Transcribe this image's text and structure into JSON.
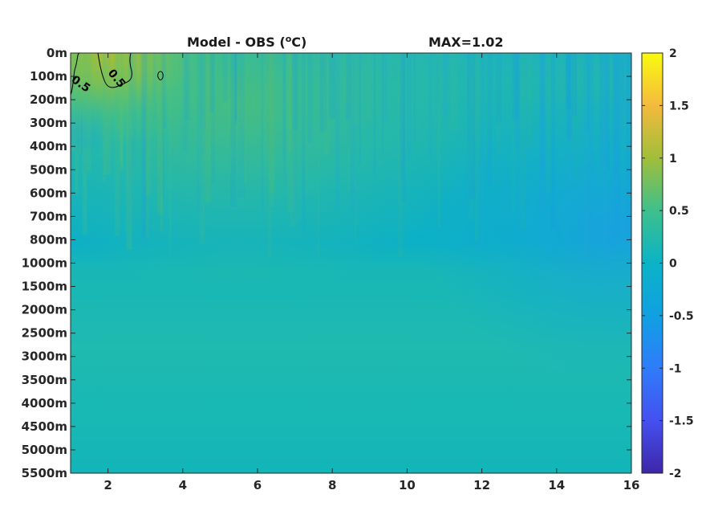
{
  "chart_data": {
    "type": "heatmap",
    "title": "Model - OBS (",
    "title_unit_superscript": "o",
    "title_unit_suffix": "C)",
    "max_label": "MAX=1.02",
    "x_ticks": [
      "2",
      "4",
      "6",
      "8",
      "10",
      "12",
      "14",
      "16"
    ],
    "x_tick_values": [
      2,
      4,
      6,
      8,
      10,
      12,
      14,
      16
    ],
    "xlim": [
      1,
      16
    ],
    "y_ticks": [
      "0m",
      "100m",
      "200m",
      "300m",
      "400m",
      "500m",
      "600m",
      "700m",
      "800m",
      "1000m",
      "1500m",
      "2000m",
      "2500m",
      "3000m",
      "3500m",
      "4000m",
      "4500m",
      "5000m",
      "5500m"
    ],
    "colorbar": {
      "range": [
        -2,
        2
      ],
      "ticks": [
        "2",
        "1.5",
        "1",
        "0.5",
        "0",
        "-0.5",
        "-1",
        "-1.5",
        "-2"
      ],
      "tick_values": [
        2,
        1.5,
        1,
        0.5,
        0,
        -0.5,
        -1,
        -1.5,
        -2
      ],
      "colormap": "parula"
    },
    "contour": {
      "level": 0.5,
      "labels": [
        "0.5",
        "0.5"
      ]
    },
    "approx_field_by_depth_band": [
      {
        "depth": "0m-100m",
        "x1_3": 0.8,
        "x3_8": 0.4,
        "x8_16": 0.05
      },
      {
        "depth": "100m-300m",
        "x1_3": 0.5,
        "x3_8": 0.35,
        "x8_16": 0.15
      },
      {
        "depth": "300m-700m",
        "x1_3": 0.15,
        "x3_8": 0.2,
        "x8_16": 0.1
      },
      {
        "depth": "700m-1000m",
        "x1_3": 0.05,
        "x3_8": 0.05,
        "x8_16": -0.1
      },
      {
        "depth": "1000m-2500m",
        "x1_3": 0.2,
        "x3_8": 0.2,
        "x8_16": 0.18
      },
      {
        "depth": "2500m-5500m",
        "x1_3": 0.12,
        "x3_8": 0.1,
        "x8_16": 0.08
      }
    ]
  }
}
